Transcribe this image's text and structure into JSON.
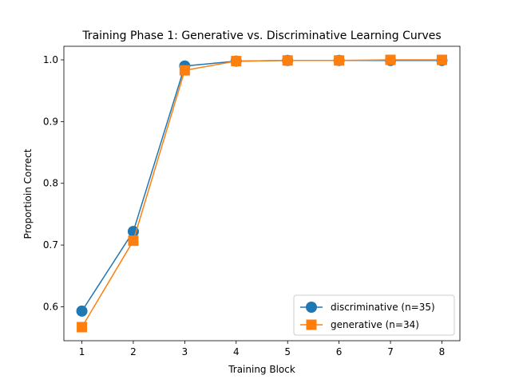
{
  "chart_data": {
    "type": "line",
    "title": "Training Phase 1: Generative vs. Discriminative Learning Curves",
    "xlabel": "Training Block",
    "ylabel": "Proportioin Correct",
    "x": [
      1,
      2,
      3,
      4,
      5,
      6,
      7,
      8
    ],
    "xlim": [
      0.65,
      8.35
    ],
    "ylim": [
      0.545,
      1.022
    ],
    "xticks": [
      1,
      2,
      3,
      4,
      5,
      6,
      7,
      8
    ],
    "yticks": [
      0.6,
      0.7,
      0.8,
      0.9,
      1.0
    ],
    "ytick_labels": [
      "0.6",
      "0.7",
      "0.8",
      "0.9",
      "1.0"
    ],
    "grid": false,
    "legend_position": "lower-right",
    "series": [
      {
        "name": "discriminative (n=35)",
        "marker": "circle",
        "color": "#1f77b4",
        "values": [
          0.593,
          0.722,
          0.99,
          0.998,
          0.999,
          0.999,
          0.999,
          0.999
        ]
      },
      {
        "name": "generative (n=34)",
        "marker": "square",
        "color": "#ff7f0e",
        "values": [
          0.567,
          0.707,
          0.983,
          0.998,
          0.999,
          0.999,
          1.0,
          1.0
        ]
      }
    ]
  }
}
